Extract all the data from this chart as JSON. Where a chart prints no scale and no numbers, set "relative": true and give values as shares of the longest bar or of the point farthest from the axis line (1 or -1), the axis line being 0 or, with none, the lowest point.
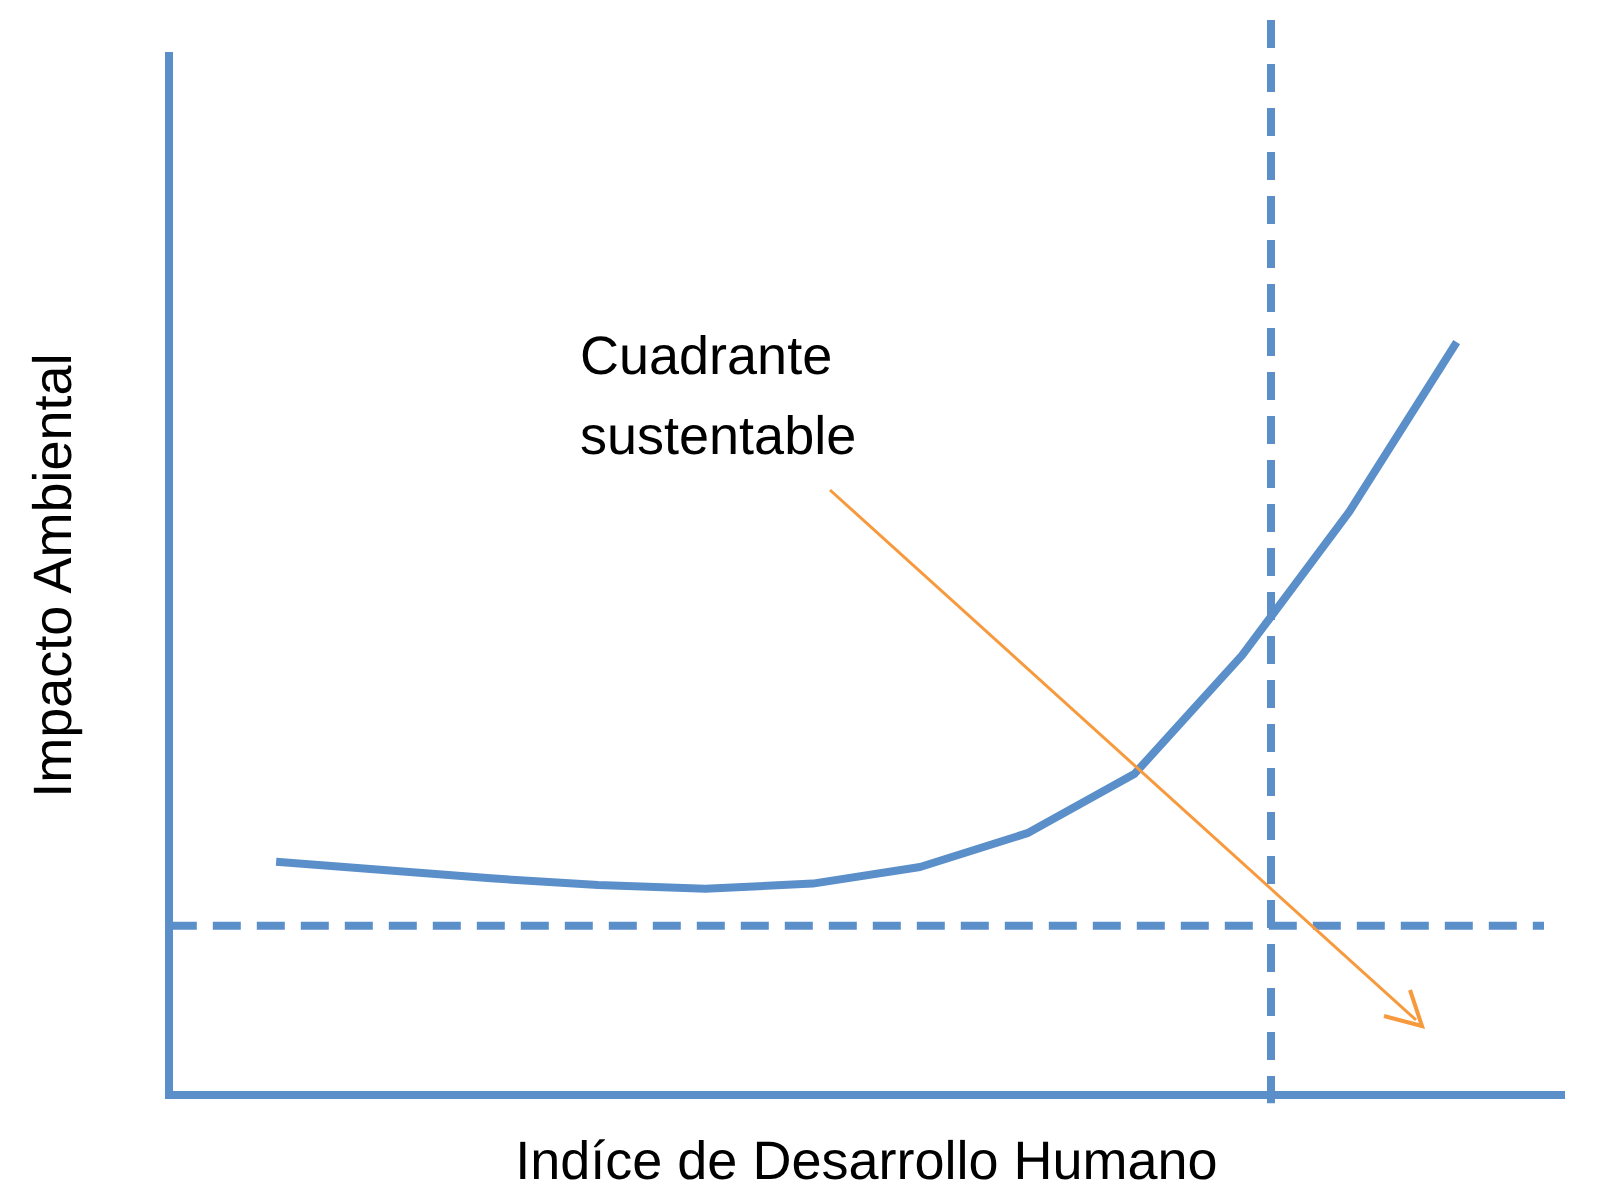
{
  "chart_data": {
    "type": "line",
    "relative": true,
    "xlabel": "Indíce de Desarrollo Humano",
    "ylabel": "Impacto Ambiental",
    "annotations": [
      "Cuadrante sustentable"
    ],
    "categories": [
      null,
      null,
      null,
      null,
      null,
      null,
      null,
      null,
      null,
      null,
      null,
      null,
      null,
      null
    ],
    "series": [
      {
        "color": "#5b8fc9",
        "values": [
          null,
          0.31,
          0.299,
          0.288,
          0.279,
          0.274,
          0.281,
          0.303,
          0.348,
          0.427,
          0.584,
          0.775,
          1,
          null
        ]
      }
    ],
    "ref_lines": [
      {
        "axis": "y",
        "value": 0.225,
        "color": "#5b8fc9",
        "line_style": "dashed"
      }
    ],
    "grid": false,
    "legend": false,
    "marker": "none",
    "line_style": "solid"
  }
}
